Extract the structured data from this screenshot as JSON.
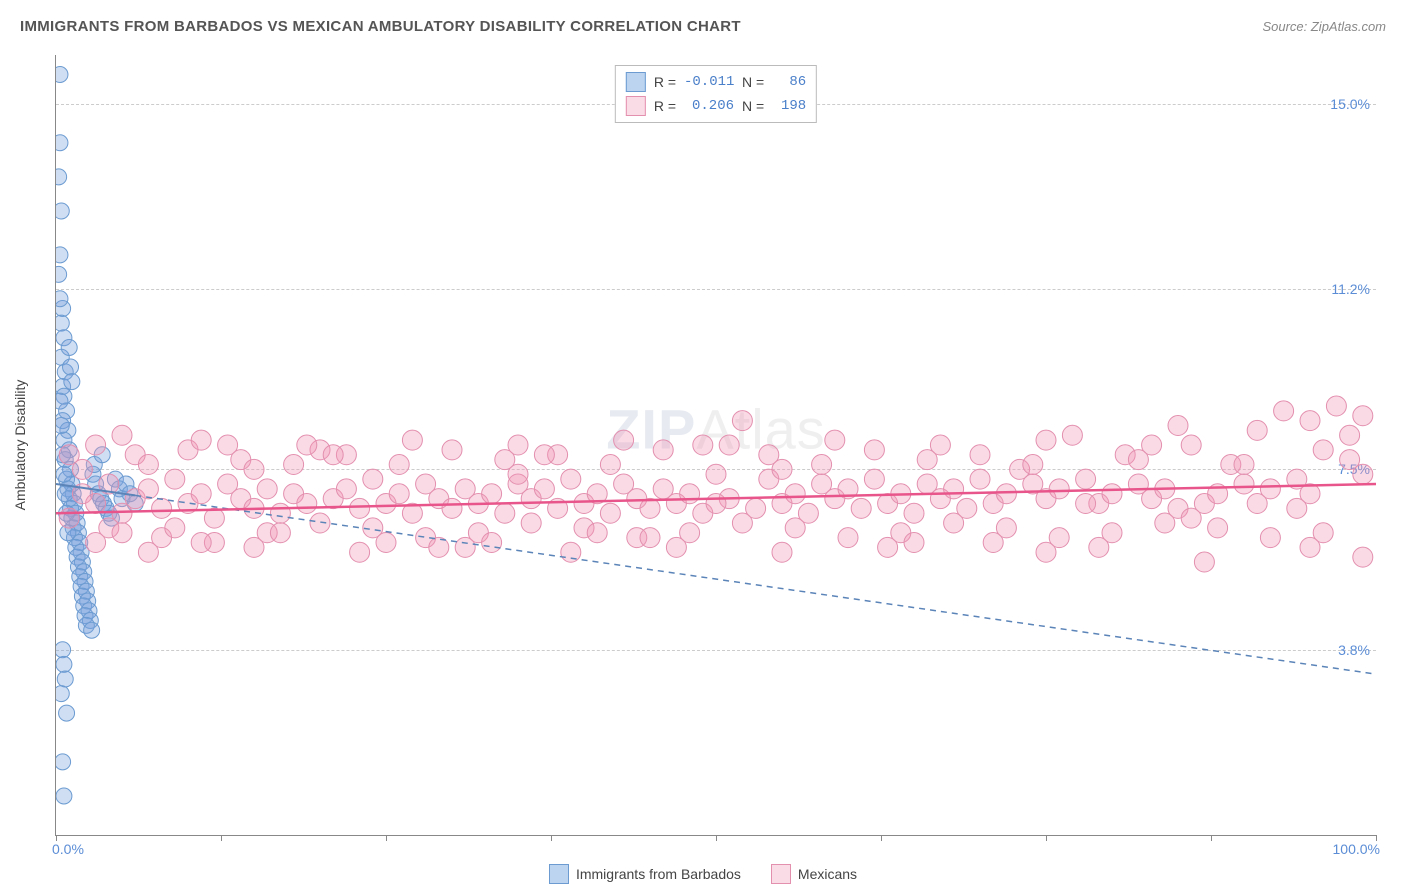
{
  "title": "IMMIGRANTS FROM BARBADOS VS MEXICAN AMBULATORY DISABILITY CORRELATION CHART",
  "source": "Source: ZipAtlas.com",
  "watermark_a": "ZIP",
  "watermark_b": "Atlas",
  "ylabel": "Ambulatory Disability",
  "chart": {
    "type": "scatter",
    "xlim": [
      0,
      100
    ],
    "ylim": [
      0,
      16
    ],
    "x_percent_min": "0.0%",
    "x_percent_max": "100.0%",
    "x_tick_positions": [
      0,
      12.5,
      25,
      37.5,
      50,
      62.5,
      75,
      87.5,
      100
    ],
    "y_gridlines": [
      {
        "value": 3.8,
        "label": "3.8%"
      },
      {
        "value": 7.5,
        "label": "7.5%"
      },
      {
        "value": 11.2,
        "label": "11.2%"
      },
      {
        "value": 15.0,
        "label": "15.0%"
      }
    ],
    "background_color": "#ffffff",
    "grid_color": "#cccccc",
    "series": [
      {
        "name": "Immigrants from Barbados",
        "color_fill": "rgba(120,160,220,0.35)",
        "color_stroke": "#6b9bd1",
        "swatch_fill": "#bcd4f0",
        "swatch_border": "#6b9bd1",
        "marker_radius": 8,
        "R": "-0.011",
        "N": "86",
        "trend": {
          "x1": 0,
          "y1": 7.2,
          "x2": 100,
          "y2": 3.3,
          "dash": "5,5",
          "color": "#5b84b8",
          "fade": true
        },
        "points": [
          [
            0.3,
            15.6
          ],
          [
            0.4,
            12.8
          ],
          [
            0.3,
            11.9
          ],
          [
            0.5,
            10.8
          ],
          [
            0.4,
            10.5
          ],
          [
            0.6,
            10.2
          ],
          [
            0.4,
            9.8
          ],
          [
            0.7,
            9.5
          ],
          [
            0.5,
            9.2
          ],
          [
            0.6,
            9.0
          ],
          [
            0.8,
            8.7
          ],
          [
            0.5,
            8.5
          ],
          [
            0.9,
            8.3
          ],
          [
            0.6,
            8.1
          ],
          [
            1.0,
            7.9
          ],
          [
            0.7,
            7.7
          ],
          [
            1.1,
            7.5
          ],
          [
            0.8,
            7.3
          ],
          [
            1.2,
            7.2
          ],
          [
            0.9,
            7.1
          ],
          [
            1.3,
            7.0
          ],
          [
            1.0,
            6.9
          ],
          [
            1.4,
            6.8
          ],
          [
            1.1,
            6.7
          ],
          [
            1.5,
            6.6
          ],
          [
            1.2,
            6.5
          ],
          [
            1.6,
            6.4
          ],
          [
            1.3,
            6.3
          ],
          [
            1.7,
            6.2
          ],
          [
            1.4,
            6.1
          ],
          [
            1.8,
            6.0
          ],
          [
            1.5,
            5.9
          ],
          [
            1.9,
            5.8
          ],
          [
            1.6,
            5.7
          ],
          [
            2.0,
            5.6
          ],
          [
            1.7,
            5.5
          ],
          [
            2.1,
            5.4
          ],
          [
            1.8,
            5.3
          ],
          [
            2.2,
            5.2
          ],
          [
            1.9,
            5.1
          ],
          [
            2.3,
            5.0
          ],
          [
            2.0,
            4.9
          ],
          [
            2.4,
            4.8
          ],
          [
            2.1,
            4.7
          ],
          [
            2.5,
            4.6
          ],
          [
            2.2,
            4.5
          ],
          [
            2.6,
            4.4
          ],
          [
            2.3,
            4.3
          ],
          [
            2.7,
            4.2
          ],
          [
            0.5,
            3.8
          ],
          [
            0.6,
            3.5
          ],
          [
            0.7,
            3.2
          ],
          [
            0.4,
            2.9
          ],
          [
            0.8,
            2.5
          ],
          [
            0.5,
            1.5
          ],
          [
            0.6,
            0.8
          ],
          [
            2.8,
            7.4
          ],
          [
            3.0,
            7.2
          ],
          [
            3.2,
            7.0
          ],
          [
            3.4,
            6.9
          ],
          [
            3.6,
            6.8
          ],
          [
            3.8,
            6.7
          ],
          [
            4.0,
            6.6
          ],
          [
            4.2,
            6.5
          ],
          [
            4.5,
            7.3
          ],
          [
            4.8,
            7.1
          ],
          [
            5.0,
            6.9
          ],
          [
            5.3,
            7.2
          ],
          [
            5.6,
            7.0
          ],
          [
            6.0,
            6.8
          ],
          [
            0.3,
            8.9
          ],
          [
            0.4,
            8.4
          ],
          [
            0.5,
            7.8
          ],
          [
            0.6,
            7.4
          ],
          [
            0.7,
            7.0
          ],
          [
            0.8,
            6.6
          ],
          [
            0.9,
            6.2
          ],
          [
            1.0,
            10.0
          ],
          [
            1.1,
            9.6
          ],
          [
            1.2,
            9.3
          ],
          [
            0.2,
            11.5
          ],
          [
            0.3,
            11.0
          ],
          [
            0.2,
            13.5
          ],
          [
            0.3,
            14.2
          ],
          [
            2.9,
            7.6
          ],
          [
            3.5,
            7.8
          ]
        ]
      },
      {
        "name": "Mexicans",
        "color_fill": "rgba(240,150,180,0.35)",
        "color_stroke": "#e38fae",
        "swatch_fill": "#fadce6",
        "swatch_border": "#e38fae",
        "marker_radius": 10,
        "R": "0.206",
        "N": "198",
        "trend": {
          "x1": 0,
          "y1": 6.6,
          "x2": 100,
          "y2": 7.2,
          "dash": "",
          "color": "#e8558a",
          "fade": false
        },
        "points": [
          [
            1,
            6.5
          ],
          [
            2,
            7.0
          ],
          [
            3,
            6.8
          ],
          [
            4,
            7.2
          ],
          [
            5,
            6.6
          ],
          [
            6,
            6.9
          ],
          [
            7,
            7.1
          ],
          [
            8,
            6.7
          ],
          [
            9,
            7.3
          ],
          [
            10,
            6.8
          ],
          [
            11,
            7.0
          ],
          [
            12,
            6.5
          ],
          [
            13,
            7.2
          ],
          [
            14,
            6.9
          ],
          [
            15,
            6.7
          ],
          [
            16,
            7.1
          ],
          [
            17,
            6.6
          ],
          [
            18,
            7.0
          ],
          [
            19,
            6.8
          ],
          [
            20,
            7.9
          ],
          [
            21,
            6.9
          ],
          [
            22,
            7.1
          ],
          [
            23,
            6.7
          ],
          [
            24,
            7.3
          ],
          [
            25,
            6.8
          ],
          [
            26,
            7.0
          ],
          [
            27,
            6.6
          ],
          [
            28,
            7.2
          ],
          [
            29,
            6.9
          ],
          [
            30,
            6.7
          ],
          [
            31,
            7.1
          ],
          [
            32,
            6.8
          ],
          [
            33,
            7.0
          ],
          [
            34,
            6.6
          ],
          [
            35,
            7.2
          ],
          [
            36,
            6.9
          ],
          [
            37,
            7.1
          ],
          [
            38,
            6.7
          ],
          [
            39,
            7.3
          ],
          [
            40,
            6.8
          ],
          [
            41,
            7.0
          ],
          [
            42,
            6.6
          ],
          [
            43,
            7.2
          ],
          [
            44,
            6.9
          ],
          [
            45,
            6.7
          ],
          [
            46,
            7.1
          ],
          [
            47,
            6.8
          ],
          [
            48,
            7.0
          ],
          [
            49,
            6.6
          ],
          [
            50,
            7.4
          ],
          [
            51,
            6.9
          ],
          [
            52,
            8.5
          ],
          [
            53,
            6.7
          ],
          [
            54,
            7.3
          ],
          [
            55,
            6.8
          ],
          [
            56,
            7.0
          ],
          [
            57,
            6.6
          ],
          [
            58,
            7.2
          ],
          [
            59,
            6.9
          ],
          [
            60,
            7.1
          ],
          [
            61,
            6.7
          ],
          [
            62,
            7.3
          ],
          [
            63,
            6.8
          ],
          [
            64,
            7.0
          ],
          [
            65,
            6.6
          ],
          [
            66,
            7.2
          ],
          [
            67,
            6.9
          ],
          [
            68,
            7.1
          ],
          [
            69,
            6.7
          ],
          [
            70,
            7.3
          ],
          [
            71,
            6.8
          ],
          [
            72,
            7.0
          ],
          [
            73,
            7.5
          ],
          [
            74,
            7.2
          ],
          [
            75,
            6.9
          ],
          [
            76,
            7.1
          ],
          [
            77,
            8.2
          ],
          [
            78,
            7.3
          ],
          [
            79,
            6.8
          ],
          [
            80,
            7.0
          ],
          [
            81,
            7.8
          ],
          [
            82,
            7.2
          ],
          [
            83,
            6.9
          ],
          [
            84,
            7.1
          ],
          [
            85,
            6.7
          ],
          [
            86,
            8.0
          ],
          [
            87,
            6.8
          ],
          [
            88,
            7.0
          ],
          [
            89,
            7.6
          ],
          [
            90,
            7.2
          ],
          [
            91,
            8.3
          ],
          [
            92,
            7.1
          ],
          [
            93,
            8.7
          ],
          [
            94,
            7.3
          ],
          [
            95,
            8.5
          ],
          [
            96,
            7.9
          ],
          [
            97,
            8.8
          ],
          [
            98,
            8.2
          ],
          [
            99,
            8.6
          ],
          [
            99,
            7.4
          ],
          [
            2,
            7.5
          ],
          [
            4,
            6.3
          ],
          [
            6,
            7.8
          ],
          [
            8,
            6.1
          ],
          [
            10,
            7.9
          ],
          [
            12,
            6.0
          ],
          [
            14,
            7.7
          ],
          [
            16,
            6.2
          ],
          [
            18,
            7.6
          ],
          [
            20,
            6.4
          ],
          [
            22,
            7.8
          ],
          [
            24,
            6.3
          ],
          [
            26,
            7.6
          ],
          [
            28,
            6.1
          ],
          [
            30,
            7.9
          ],
          [
            32,
            6.2
          ],
          [
            34,
            7.7
          ],
          [
            36,
            6.4
          ],
          [
            38,
            7.8
          ],
          [
            40,
            6.3
          ],
          [
            42,
            7.6
          ],
          [
            44,
            6.1
          ],
          [
            46,
            7.9
          ],
          [
            48,
            6.2
          ],
          [
            50,
            6.8
          ],
          [
            52,
            6.4
          ],
          [
            54,
            7.8
          ],
          [
            56,
            6.3
          ],
          [
            58,
            7.6
          ],
          [
            60,
            6.1
          ],
          [
            62,
            7.9
          ],
          [
            64,
            6.2
          ],
          [
            66,
            7.7
          ],
          [
            68,
            6.4
          ],
          [
            70,
            7.8
          ],
          [
            72,
            6.3
          ],
          [
            74,
            7.6
          ],
          [
            76,
            6.1
          ],
          [
            78,
            6.8
          ],
          [
            80,
            6.2
          ],
          [
            82,
            7.7
          ],
          [
            84,
            6.4
          ],
          [
            86,
            6.5
          ],
          [
            88,
            6.3
          ],
          [
            90,
            7.6
          ],
          [
            92,
            6.1
          ],
          [
            94,
            6.7
          ],
          [
            96,
            6.2
          ],
          [
            98,
            7.7
          ],
          [
            99,
            5.7
          ],
          [
            3,
            8.0
          ],
          [
            7,
            5.8
          ],
          [
            11,
            8.1
          ],
          [
            15,
            5.9
          ],
          [
            19,
            8.0
          ],
          [
            23,
            5.8
          ],
          [
            27,
            8.1
          ],
          [
            31,
            5.9
          ],
          [
            35,
            8.0
          ],
          [
            39,
            5.8
          ],
          [
            43,
            8.1
          ],
          [
            47,
            5.9
          ],
          [
            51,
            8.0
          ],
          [
            55,
            5.8
          ],
          [
            59,
            8.1
          ],
          [
            63,
            5.9
          ],
          [
            67,
            8.0
          ],
          [
            71,
            6.0
          ],
          [
            75,
            8.1
          ],
          [
            79,
            5.9
          ],
          [
            83,
            8.0
          ],
          [
            87,
            5.6
          ],
          [
            91,
            6.8
          ],
          [
            95,
            5.9
          ],
          [
            5,
            6.2
          ],
          [
            15,
            7.5
          ],
          [
            25,
            6.0
          ],
          [
            35,
            7.4
          ],
          [
            45,
            6.1
          ],
          [
            55,
            7.5
          ],
          [
            65,
            6.0
          ],
          [
            75,
            5.8
          ],
          [
            85,
            8.4
          ],
          [
            95,
            7.0
          ],
          [
            1,
            7.8
          ],
          [
            3,
            6.0
          ],
          [
            5,
            8.2
          ],
          [
            7,
            7.6
          ],
          [
            9,
            6.3
          ],
          [
            11,
            6.0
          ],
          [
            13,
            8.0
          ],
          [
            17,
            6.2
          ],
          [
            21,
            7.8
          ],
          [
            29,
            5.9
          ],
          [
            33,
            6.0
          ],
          [
            37,
            7.8
          ],
          [
            41,
            6.2
          ],
          [
            49,
            8.0
          ]
        ]
      }
    ]
  },
  "legend_labels": {
    "r_label": "R =",
    "n_label": "N ="
  },
  "bottom_legend": {
    "a": "Immigrants from Barbados",
    "b": "Mexicans"
  }
}
